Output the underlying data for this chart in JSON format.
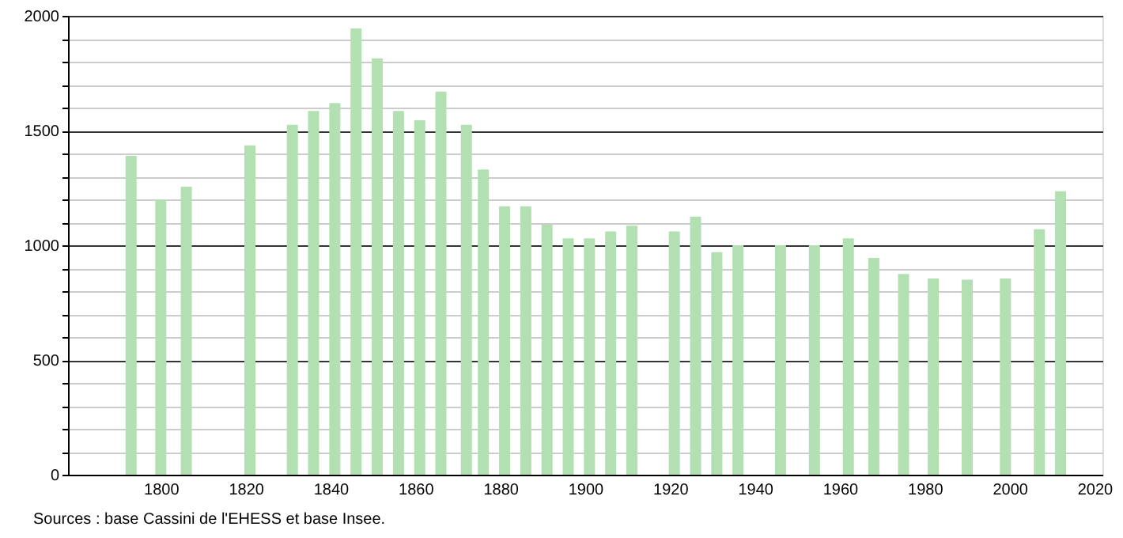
{
  "chart_data": {
    "type": "bar",
    "x": [
      1793,
      1800,
      1806,
      1821,
      1831,
      1836,
      1841,
      1846,
      1851,
      1856,
      1861,
      1866,
      1872,
      1876,
      1881,
      1886,
      1891,
      1896,
      1901,
      1906,
      1911,
      1921,
      1926,
      1931,
      1936,
      1946,
      1954,
      1962,
      1968,
      1975,
      1982,
      1990,
      1999,
      2007,
      2012
    ],
    "values": [
      1390,
      1200,
      1255,
      1435,
      1525,
      1585,
      1620,
      1945,
      1815,
      1585,
      1545,
      1670,
      1525,
      1330,
      1170,
      1170,
      1090,
      1030,
      1030,
      1060,
      1085,
      1060,
      1125,
      970,
      1000,
      1000,
      1000,
      1030,
      945,
      875,
      855,
      850,
      855,
      1070,
      1235
    ],
    "color": "#b3e0b3",
    "xlim": [
      1780,
      2020
    ],
    "xticks": [
      1800,
      1820,
      1840,
      1860,
      1880,
      1900,
      1920,
      1940,
      1960,
      1980,
      2000,
      2020
    ],
    "ylim": [
      0,
      2000
    ],
    "yticks": [
      0,
      {
        "value": 100,
        "label": null
      },
      {
        "value": 200,
        "label": null
      },
      {
        "value": 300,
        "label": null
      },
      {
        "value": 400,
        "label": null
      },
      500,
      {
        "value": 600,
        "label": null
      },
      {
        "value": 700,
        "label": null
      },
      {
        "value": 800,
        "label": null
      },
      {
        "value": 900,
        "label": null
      },
      1000,
      {
        "value": 1100,
        "label": null
      },
      {
        "value": 1200,
        "label": null
      },
      {
        "value": 1300,
        "label": null
      },
      {
        "value": 1400,
        "label": null
      },
      1500,
      {
        "value": 1600,
        "label": null
      },
      {
        "value": 1700,
        "label": null
      },
      {
        "value": 1800,
        "label": null
      },
      {
        "value": 1900,
        "label": null
      },
      2000
    ],
    "grid": "y",
    "annotations": [
      "Sources : base Cassini de l'EHESS et base Insee."
    ]
  }
}
